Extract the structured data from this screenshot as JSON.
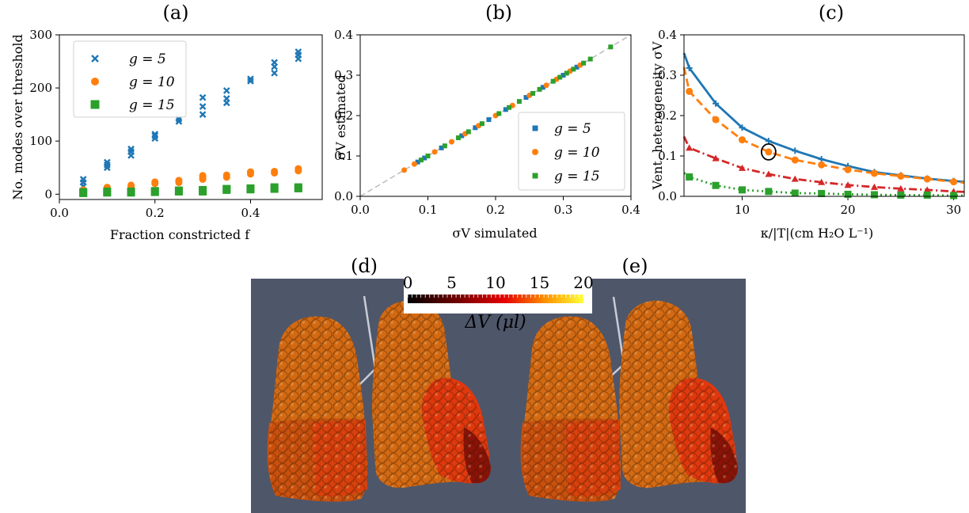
{
  "colors": {
    "blue": "#1f77b4",
    "orange": "#ff7f0e",
    "green": "#2ca02c",
    "red": "#d62728",
    "lung_bg": "#4e566a"
  },
  "panels": {
    "a": "(a)",
    "b": "(b)",
    "c": "(c)",
    "d": "(d)",
    "e": "(e)"
  },
  "chart_data": [
    {
      "id": "a",
      "type": "scatter",
      "xlabel": "Fraction constricted f",
      "ylabel": "No. modes over threshold",
      "xlim": [
        0.0,
        0.55
      ],
      "ylim": [
        -10,
        300
      ],
      "xticks": [
        "0.0",
        "0.2",
        "0.4"
      ],
      "xtick_values": [
        0.0,
        0.2,
        0.4
      ],
      "yticks": [
        "0",
        "100",
        "200",
        "300"
      ],
      "ytick_values": [
        0,
        100,
        200,
        300
      ],
      "legend_position": "upper-left",
      "series": [
        {
          "name": "g = 5",
          "marker": "x",
          "color": "blue",
          "points": [
            [
              0.05,
              15
            ],
            [
              0.05,
              22
            ],
            [
              0.05,
              28
            ],
            [
              0.1,
              50
            ],
            [
              0.1,
              55
            ],
            [
              0.1,
              60
            ],
            [
              0.15,
              73
            ],
            [
              0.15,
              80
            ],
            [
              0.15,
              85
            ],
            [
              0.2,
              105
            ],
            [
              0.2,
              110
            ],
            [
              0.2,
              113
            ],
            [
              0.25,
              137
            ],
            [
              0.25,
              142
            ],
            [
              0.3,
              150
            ],
            [
              0.3,
              165
            ],
            [
              0.3,
              182
            ],
            [
              0.35,
              172
            ],
            [
              0.35,
              180
            ],
            [
              0.35,
              195
            ],
            [
              0.4,
              213
            ],
            [
              0.4,
              217
            ],
            [
              0.45,
              228
            ],
            [
              0.45,
              240
            ],
            [
              0.45,
              248
            ],
            [
              0.5,
              255
            ],
            [
              0.5,
              262
            ],
            [
              0.5,
              268
            ]
          ]
        },
        {
          "name": "g = 10",
          "marker": "circle",
          "color": "orange",
          "points": [
            [
              0.05,
              8
            ],
            [
              0.1,
              10
            ],
            [
              0.1,
              13
            ],
            [
              0.15,
              14
            ],
            [
              0.15,
              17
            ],
            [
              0.2,
              20
            ],
            [
              0.2,
              23
            ],
            [
              0.25,
              22
            ],
            [
              0.25,
              26
            ],
            [
              0.3,
              28
            ],
            [
              0.3,
              32
            ],
            [
              0.3,
              35
            ],
            [
              0.35,
              32
            ],
            [
              0.35,
              36
            ],
            [
              0.4,
              38
            ],
            [
              0.4,
              42
            ],
            [
              0.45,
              40
            ],
            [
              0.45,
              43
            ],
            [
              0.5,
              44
            ],
            [
              0.5,
              48
            ]
          ]
        },
        {
          "name": "g = 15",
          "marker": "square",
          "color": "green",
          "points": [
            [
              0.05,
              2
            ],
            [
              0.05,
              4
            ],
            [
              0.1,
              3
            ],
            [
              0.1,
              5
            ],
            [
              0.15,
              3
            ],
            [
              0.15,
              5
            ],
            [
              0.2,
              4
            ],
            [
              0.2,
              6
            ],
            [
              0.25,
              5
            ],
            [
              0.25,
              7
            ],
            [
              0.3,
              5
            ],
            [
              0.3,
              8
            ],
            [
              0.35,
              8
            ],
            [
              0.35,
              10
            ],
            [
              0.4,
              9
            ],
            [
              0.4,
              11
            ],
            [
              0.45,
              10
            ],
            [
              0.45,
              13
            ],
            [
              0.5,
              11
            ],
            [
              0.5,
              13
            ]
          ]
        }
      ]
    },
    {
      "id": "b",
      "type": "scatter",
      "xlabel": "σV simulated",
      "ylabel": "σV estimated",
      "xlim": [
        0.0,
        0.4
      ],
      "ylim": [
        0.0,
        0.4
      ],
      "xticks": [
        "0.0",
        "0.1",
        "0.2",
        "0.3",
        "0.4"
      ],
      "xtick_values": [
        0.0,
        0.1,
        0.2,
        0.3,
        0.4
      ],
      "yticks": [
        "0.0",
        "0.1",
        "0.2",
        "0.3",
        "0.4"
      ],
      "ytick_values": [
        0.0,
        0.1,
        0.2,
        0.3,
        0.4
      ],
      "legend_position": "lower-right",
      "reference_line": "y = x",
      "series": [
        {
          "name": "g = 5",
          "marker": "square",
          "color": "blue",
          "points": [
            [
              0.085,
              0.085
            ],
            [
              0.095,
              0.095
            ],
            [
              0.12,
              0.12
            ],
            [
              0.15,
              0.15
            ],
            [
              0.17,
              0.17
            ],
            [
              0.19,
              0.19
            ],
            [
              0.215,
              0.215
            ],
            [
              0.245,
              0.245
            ],
            [
              0.27,
              0.27
            ],
            [
              0.3,
              0.3
            ],
            [
              0.32,
              0.32
            ]
          ]
        },
        {
          "name": "g = 10",
          "marker": "circle",
          "color": "orange",
          "points": [
            [
              0.065,
              0.065
            ],
            [
              0.08,
              0.08
            ],
            [
              0.11,
              0.11
            ],
            [
              0.135,
              0.135
            ],
            [
              0.155,
              0.155
            ],
            [
              0.175,
              0.175
            ],
            [
              0.2,
              0.2
            ],
            [
              0.225,
              0.225
            ],
            [
              0.25,
              0.25
            ],
            [
              0.275,
              0.275
            ],
            [
              0.29,
              0.29
            ],
            [
              0.31,
              0.31
            ],
            [
              0.325,
              0.325
            ]
          ]
        },
        {
          "name": "g = 15",
          "marker": "square",
          "color": "green",
          "points": [
            [
              0.09,
              0.09
            ],
            [
              0.1,
              0.1
            ],
            [
              0.125,
              0.125
            ],
            [
              0.145,
              0.145
            ],
            [
              0.16,
              0.16
            ],
            [
              0.18,
              0.18
            ],
            [
              0.205,
              0.205
            ],
            [
              0.22,
              0.22
            ],
            [
              0.235,
              0.235
            ],
            [
              0.255,
              0.255
            ],
            [
              0.265,
              0.265
            ],
            [
              0.285,
              0.285
            ],
            [
              0.295,
              0.295
            ],
            [
              0.305,
              0.305
            ],
            [
              0.315,
              0.315
            ],
            [
              0.33,
              0.33
            ],
            [
              0.34,
              0.34
            ],
            [
              0.37,
              0.37
            ]
          ]
        }
      ]
    },
    {
      "id": "c",
      "type": "line",
      "xlabel": "κ/|T|(cm H₂O L⁻¹)",
      "ylabel": "Vent. heterogeneity σV",
      "xlim": [
        4.5,
        31
      ],
      "ylim": [
        0.0,
        0.4
      ],
      "xticks": [
        "10",
        "20",
        "30"
      ],
      "xtick_values": [
        10,
        20,
        30
      ],
      "yticks": [
        "0.0",
        "0.1",
        "0.2",
        "0.3",
        "0.4"
      ],
      "ytick_values": [
        0.0,
        0.1,
        0.2,
        0.3,
        0.4
      ],
      "highlight_point": [
        12.5,
        0.11
      ],
      "series": [
        {
          "color": "blue",
          "style": "solid",
          "marker": "plus",
          "x": [
            4.5,
            5,
            7.5,
            10,
            12.5,
            15,
            17.5,
            20,
            22.5,
            25,
            27.5,
            30,
            31
          ],
          "y": [
            0.355,
            0.318,
            0.23,
            0.17,
            0.137,
            0.113,
            0.092,
            0.075,
            0.06,
            0.052,
            0.044,
            0.038,
            0.036
          ]
        },
        {
          "color": "orange",
          "style": "dashed",
          "marker": "circle",
          "x": [
            4.5,
            5,
            7.5,
            10,
            12.5,
            15,
            17.5,
            20,
            22.5,
            25,
            27.5,
            30,
            31
          ],
          "y": [
            0.32,
            0.26,
            0.19,
            0.14,
            0.11,
            0.09,
            0.078,
            0.066,
            0.057,
            0.05,
            0.043,
            0.036,
            0.034
          ]
        },
        {
          "color": "red",
          "style": "dashdot",
          "marker": "triangle",
          "x": [
            4.5,
            5,
            7.5,
            10,
            12.5,
            15,
            17.5,
            20,
            22.5,
            25,
            27.5,
            30,
            31
          ],
          "y": [
            0.148,
            0.12,
            0.094,
            0.07,
            0.055,
            0.043,
            0.035,
            0.028,
            0.023,
            0.019,
            0.016,
            0.012,
            0.011
          ]
        },
        {
          "color": "green",
          "style": "dotted",
          "marker": "square",
          "x": [
            4.5,
            5,
            7.5,
            10,
            12.5,
            15,
            17.5,
            20,
            22.5,
            25,
            27.5,
            30,
            31
          ],
          "y": [
            0.058,
            0.048,
            0.027,
            0.016,
            0.012,
            0.008,
            0.007,
            0.005,
            0.004,
            0.003,
            0.003,
            0.002,
            0.002
          ]
        }
      ]
    }
  ],
  "colorbar": {
    "ticks": [
      "0",
      "5",
      "10",
      "15",
      "20"
    ],
    "label": "ΔV (μl)",
    "range": [
      0,
      20
    ]
  }
}
